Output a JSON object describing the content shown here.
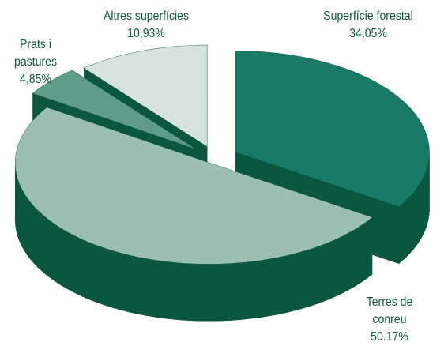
{
  "chart_data": {
    "type": "pie",
    "categories": [
      "Superfície forestal",
      "Terres de conreu",
      "Prats i pastures",
      "Altres superfícies"
    ],
    "values": [
      34.05,
      50.17,
      4.85,
      10.93
    ],
    "value_labels": [
      "34,05%",
      "50.17%",
      "4,85%",
      "10,93%"
    ],
    "colors": [
      "#1a7a68",
      "#9bbfb3",
      "#5f9c8a",
      "#d6e4df"
    ],
    "side_color": "#0b5641"
  }
}
